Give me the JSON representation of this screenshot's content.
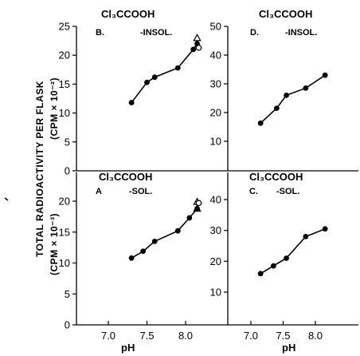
{
  "y_axis_label_top": "TOTAL RADIOACTIVITY PER FLASK",
  "y_axis_label_top_units": "(CPM × 10⁻²)",
  "y_axis_label_bottom_units": "(CPM × 10⁻³)",
  "x_axis_label": "pH",
  "chart_data": [
    {
      "type": "line",
      "panel": "B",
      "title": "Cl₃CCOOH",
      "panel_label": "B.",
      "subtitle": "-INSOL.",
      "xlabel": "",
      "ylabel": "TOTAL RADIOACTIVITY PER FLASK (CPM × 10⁻²)",
      "xlim": [
        6.6,
        8.4
      ],
      "ylim": [
        0,
        25
      ],
      "xticks": [],
      "yticks": [
        0,
        5,
        10,
        15,
        20,
        25
      ],
      "series": [
        {
          "x": [
            7.3,
            7.5,
            7.6,
            7.9,
            8.1,
            8.15
          ],
          "y": [
            11.8,
            15.3,
            16.2,
            17.8,
            21.0,
            22.0
          ],
          "marker": "filled-circle"
        },
        {
          "x": [
            8.15
          ],
          "y": [
            23.0
          ],
          "marker": "open-triangle"
        },
        {
          "x": [
            8.15
          ],
          "y": [
            21.3
          ],
          "marker": "open-circle"
        }
      ]
    },
    {
      "type": "line",
      "panel": "D",
      "title": "Cl₃CCOOH",
      "panel_label": "D.",
      "subtitle": "-INSOL.",
      "xlabel": "",
      "ylabel": "",
      "xlim": [
        6.6,
        8.4
      ],
      "ylim": [
        0,
        50
      ],
      "xticks": [],
      "yticks": [
        10,
        20,
        30,
        40,
        50
      ],
      "series": [
        {
          "x": [
            7.15,
            7.4,
            7.55,
            7.85,
            8.15
          ],
          "y": [
            16.3,
            21.5,
            26.0,
            28.5,
            33.0
          ],
          "marker": "filled-circle"
        }
      ]
    },
    {
      "type": "line",
      "panel": "A",
      "title": "Cl₃CCOOH",
      "panel_label": "A",
      "subtitle": "-SOL.",
      "xlabel": "pH",
      "ylabel": "TOTAL RADIOACTIVITY PER FLASK (CPM × 10⁻³)",
      "xlim": [
        6.6,
        8.4
      ],
      "ylim": [
        0,
        20
      ],
      "xticks": [
        "7.0",
        "7.5",
        "8.0"
      ],
      "yticks": [
        0,
        5,
        10,
        15,
        20
      ],
      "series": [
        {
          "x": [
            7.3,
            7.45,
            7.6,
            7.9,
            8.05,
            8.15
          ],
          "y": [
            10.8,
            11.9,
            13.5,
            15.2,
            17.3,
            18.8
          ],
          "marker": "filled-circle"
        },
        {
          "x": [
            8.15
          ],
          "y": [
            18.8
          ],
          "marker": "filled-triangle"
        },
        {
          "x": [
            8.15
          ],
          "y": [
            19.9
          ],
          "marker": "open-triangle"
        },
        {
          "x": [
            8.15
          ],
          "y": [
            19.7
          ],
          "marker": "open-circle"
        }
      ]
    },
    {
      "type": "line",
      "panel": "C",
      "title": "Cl₃CCOOH",
      "panel_label": "C.",
      "subtitle": "-SOL.",
      "xlabel": "pH",
      "ylabel": "",
      "xlim": [
        6.6,
        8.4
      ],
      "ylim": [
        0,
        45
      ],
      "xticks": [
        "7.0",
        "7.5",
        "8.0"
      ],
      "yticks": [
        10,
        20,
        30,
        40
      ],
      "series": [
        {
          "x": [
            7.15,
            7.35,
            7.55,
            7.85,
            8.15
          ],
          "y": [
            16.0,
            18.5,
            21.0,
            28.0,
            30.5
          ],
          "marker": "filled-circle"
        }
      ]
    }
  ]
}
